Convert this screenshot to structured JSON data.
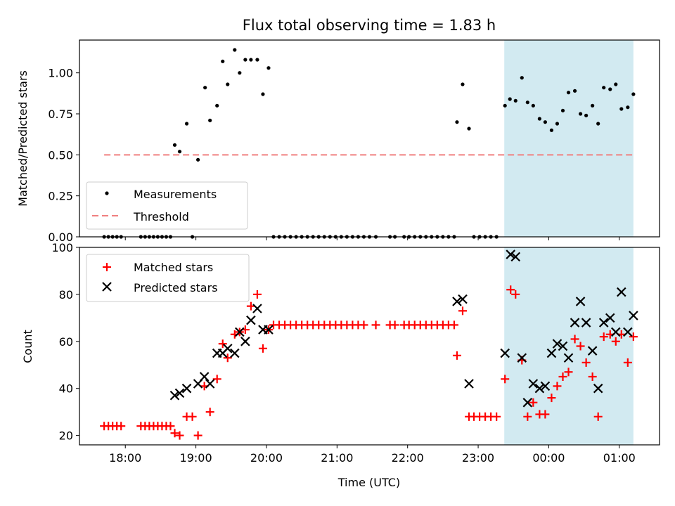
{
  "figure": {
    "title": "Flux total observing time = 1.83 h",
    "xlabel": "Time (UTC)"
  },
  "chart_data": [
    {
      "type": "scatter",
      "ylabel": "Matched/Predicted stars",
      "ylim": [
        0,
        1.2
      ],
      "yticks": [
        "0.00",
        "0.25",
        "0.50",
        "0.75",
        "1.00"
      ],
      "ytick_values": [
        0,
        0.25,
        0.5,
        0.75,
        1.0
      ],
      "xlim": [
        -0.65,
        7.57
      ],
      "xticks_shown": false,
      "legend": {
        "placement": "lower-left",
        "entries": [
          {
            "label": "Measurements",
            "marker": "dot",
            "color": "#000000"
          },
          {
            "label": "Threshold",
            "marker": "dashed-line",
            "color": "#f08080"
          }
        ]
      },
      "threshold": {
        "y": 0.5,
        "x_range": [
          -0.3,
          7.2
        ],
        "color": "#f08080"
      },
      "shaded_region": {
        "x_range": [
          5.37,
          7.2
        ],
        "color": "#add8e6"
      },
      "series": [
        {
          "name": "Measurements",
          "color": "#000000",
          "points": [
            [
              -0.3,
              0
            ],
            [
              -0.24,
              0
            ],
            [
              -0.18,
              0
            ],
            [
              -0.12,
              0
            ],
            [
              -0.06,
              0
            ],
            [
              0.22,
              0
            ],
            [
              0.28,
              0
            ],
            [
              0.34,
              0
            ],
            [
              0.4,
              0
            ],
            [
              0.46,
              0
            ],
            [
              0.52,
              0
            ],
            [
              0.58,
              0
            ],
            [
              0.64,
              0
            ],
            [
              0.95,
              0
            ],
            [
              0.7,
              0.56
            ],
            [
              0.77,
              0.52
            ],
            [
              0.87,
              0.69
            ],
            [
              1.03,
              0.47
            ],
            [
              1.13,
              0.91
            ],
            [
              1.2,
              0.71
            ],
            [
              1.3,
              0.8
            ],
            [
              1.38,
              1.07
            ],
            [
              1.45,
              0.93
            ],
            [
              1.55,
              1.14
            ],
            [
              1.62,
              1.0
            ],
            [
              1.7,
              1.08
            ],
            [
              1.78,
              1.08
            ],
            [
              1.87,
              1.08
            ],
            [
              1.95,
              0.87
            ],
            [
              2.03,
              1.03
            ],
            [
              2.1,
              0
            ],
            [
              2.18,
              0
            ],
            [
              2.26,
              0
            ],
            [
              2.34,
              0
            ],
            [
              2.42,
              0
            ],
            [
              2.5,
              0
            ],
            [
              2.58,
              0
            ],
            [
              2.66,
              0
            ],
            [
              2.74,
              0
            ],
            [
              2.82,
              0
            ],
            [
              2.9,
              0
            ],
            [
              2.98,
              0
            ],
            [
              3.06,
              0
            ],
            [
              3.14,
              0
            ],
            [
              3.22,
              0
            ],
            [
              3.3,
              0
            ],
            [
              3.38,
              0
            ],
            [
              3.46,
              0
            ],
            [
              3.55,
              0
            ],
            [
              3.75,
              0
            ],
            [
              3.82,
              0
            ],
            [
              3.95,
              0
            ],
            [
              4.02,
              0
            ],
            [
              4.1,
              0
            ],
            [
              4.18,
              0
            ],
            [
              4.26,
              0
            ],
            [
              4.34,
              0
            ],
            [
              4.42,
              0
            ],
            [
              4.5,
              0
            ],
            [
              4.58,
              0
            ],
            [
              4.66,
              0
            ],
            [
              4.94,
              0
            ],
            [
              5.02,
              0
            ],
            [
              5.1,
              0
            ],
            [
              5.18,
              0
            ],
            [
              5.26,
              0
            ],
            [
              4.7,
              0.7
            ],
            [
              4.78,
              0.93
            ],
            [
              4.87,
              0.66
            ],
            [
              5.38,
              0.8
            ],
            [
              5.45,
              0.84
            ],
            [
              5.53,
              0.83
            ],
            [
              5.62,
              0.97
            ],
            [
              5.7,
              0.82
            ],
            [
              5.78,
              0.8
            ],
            [
              5.87,
              0.72
            ],
            [
              5.95,
              0.7
            ],
            [
              6.04,
              0.65
            ],
            [
              6.12,
              0.69
            ],
            [
              6.2,
              0.77
            ],
            [
              6.28,
              0.88
            ],
            [
              6.37,
              0.89
            ],
            [
              6.45,
              0.75
            ],
            [
              6.53,
              0.74
            ],
            [
              6.62,
              0.8
            ],
            [
              6.7,
              0.69
            ],
            [
              6.78,
              0.91
            ],
            [
              6.87,
              0.9
            ],
            [
              6.95,
              0.93
            ],
            [
              7.03,
              0.78
            ],
            [
              7.12,
              0.79
            ],
            [
              7.2,
              0.87
            ]
          ]
        }
      ]
    },
    {
      "type": "scatter",
      "ylabel": "Count",
      "ylim": [
        16,
        100
      ],
      "yticks": [
        "20",
        "40",
        "60",
        "80",
        "100"
      ],
      "ytick_values": [
        20,
        40,
        60,
        80,
        100
      ],
      "xlim": [
        -0.65,
        7.57
      ],
      "xticks": [
        "18:00",
        "19:00",
        "20:00",
        "21:00",
        "22:00",
        "23:00",
        "00:00",
        "01:00"
      ],
      "xtick_values": [
        0,
        1,
        2,
        3,
        4,
        5,
        6,
        7
      ],
      "legend": {
        "placement": "top-left",
        "entries": [
          {
            "label": "Matched stars",
            "marker": "plus",
            "color": "#ff0000"
          },
          {
            "label": "Predicted stars",
            "marker": "x",
            "color": "#000000"
          }
        ]
      },
      "shaded_region": {
        "x_range": [
          5.37,
          7.2
        ],
        "color": "#add8e6"
      },
      "series": [
        {
          "name": "Matched stars",
          "color": "#ff0000",
          "marker": "plus",
          "points": [
            [
              -0.3,
              24
            ],
            [
              -0.24,
              24
            ],
            [
              -0.18,
              24
            ],
            [
              -0.12,
              24
            ],
            [
              -0.06,
              24
            ],
            [
              0.22,
              24
            ],
            [
              0.28,
              24
            ],
            [
              0.34,
              24
            ],
            [
              0.4,
              24
            ],
            [
              0.46,
              24
            ],
            [
              0.52,
              24
            ],
            [
              0.58,
              24
            ],
            [
              0.64,
              24
            ],
            [
              0.7,
              21
            ],
            [
              0.77,
              20
            ],
            [
              0.87,
              28
            ],
            [
              0.95,
              28
            ],
            [
              1.03,
              20
            ],
            [
              1.12,
              41
            ],
            [
              1.2,
              30
            ],
            [
              1.3,
              44
            ],
            [
              1.38,
              59
            ],
            [
              1.45,
              53
            ],
            [
              1.55,
              63
            ],
            [
              1.62,
              64
            ],
            [
              1.7,
              65
            ],
            [
              1.78,
              75
            ],
            [
              1.87,
              80
            ],
            [
              1.95,
              57
            ],
            [
              2.03,
              65
            ],
            [
              2.1,
              67
            ],
            [
              2.18,
              67
            ],
            [
              2.26,
              67
            ],
            [
              2.34,
              67
            ],
            [
              2.42,
              67
            ],
            [
              2.5,
              67
            ],
            [
              2.58,
              67
            ],
            [
              2.66,
              67
            ],
            [
              2.74,
              67
            ],
            [
              2.82,
              67
            ],
            [
              2.9,
              67
            ],
            [
              2.98,
              67
            ],
            [
              3.06,
              67
            ],
            [
              3.14,
              67
            ],
            [
              3.22,
              67
            ],
            [
              3.3,
              67
            ],
            [
              3.38,
              67
            ],
            [
              3.55,
              67
            ],
            [
              3.75,
              67
            ],
            [
              3.82,
              67
            ],
            [
              3.95,
              67
            ],
            [
              4.02,
              67
            ],
            [
              4.1,
              67
            ],
            [
              4.18,
              67
            ],
            [
              4.26,
              67
            ],
            [
              4.34,
              67
            ],
            [
              4.42,
              67
            ],
            [
              4.5,
              67
            ],
            [
              4.58,
              67
            ],
            [
              4.66,
              67
            ],
            [
              4.7,
              54
            ],
            [
              4.78,
              73
            ],
            [
              4.87,
              28
            ],
            [
              4.94,
              28
            ],
            [
              5.02,
              28
            ],
            [
              5.1,
              28
            ],
            [
              5.18,
              28
            ],
            [
              5.26,
              28
            ],
            [
              5.38,
              44
            ],
            [
              5.46,
              82
            ],
            [
              5.53,
              80
            ],
            [
              5.62,
              52
            ],
            [
              5.7,
              28
            ],
            [
              5.78,
              34
            ],
            [
              5.87,
              29
            ],
            [
              5.95,
              29
            ],
            [
              6.04,
              36
            ],
            [
              6.12,
              41
            ],
            [
              6.2,
              45
            ],
            [
              6.28,
              47
            ],
            [
              6.37,
              61
            ],
            [
              6.45,
              58
            ],
            [
              6.53,
              51
            ],
            [
              6.62,
              45
            ],
            [
              6.7,
              28
            ],
            [
              6.78,
              62
            ],
            [
              6.87,
              63
            ],
            [
              6.95,
              60
            ],
            [
              7.03,
              63
            ],
            [
              7.12,
              51
            ],
            [
              7.2,
              62
            ]
          ]
        },
        {
          "name": "Predicted stars",
          "color": "#000000",
          "marker": "x",
          "points": [
            [
              0.7,
              37
            ],
            [
              0.77,
              38
            ],
            [
              0.87,
              40
            ],
            [
              1.03,
              42
            ],
            [
              1.12,
              45
            ],
            [
              1.2,
              42
            ],
            [
              1.3,
              55
            ],
            [
              1.38,
              55
            ],
            [
              1.45,
              57
            ],
            [
              1.55,
              55
            ],
            [
              1.62,
              64
            ],
            [
              1.7,
              60
            ],
            [
              1.78,
              69
            ],
            [
              1.87,
              74
            ],
            [
              1.95,
              65
            ],
            [
              2.03,
              65
            ],
            [
              4.7,
              77
            ],
            [
              4.78,
              78
            ],
            [
              4.87,
              42
            ],
            [
              5.38,
              55
            ],
            [
              5.46,
              97
            ],
            [
              5.53,
              96
            ],
            [
              5.62,
              53
            ],
            [
              5.7,
              34
            ],
            [
              5.78,
              42
            ],
            [
              5.87,
              40
            ],
            [
              5.95,
              41
            ],
            [
              6.04,
              55
            ],
            [
              6.12,
              59
            ],
            [
              6.2,
              58
            ],
            [
              6.28,
              53
            ],
            [
              6.37,
              68
            ],
            [
              6.45,
              77
            ],
            [
              6.53,
              68
            ],
            [
              6.62,
              56
            ],
            [
              6.7,
              40
            ],
            [
              6.78,
              68
            ],
            [
              6.87,
              70
            ],
            [
              6.95,
              64
            ],
            [
              7.03,
              81
            ],
            [
              7.12,
              64
            ],
            [
              7.2,
              71
            ]
          ]
        }
      ]
    }
  ]
}
